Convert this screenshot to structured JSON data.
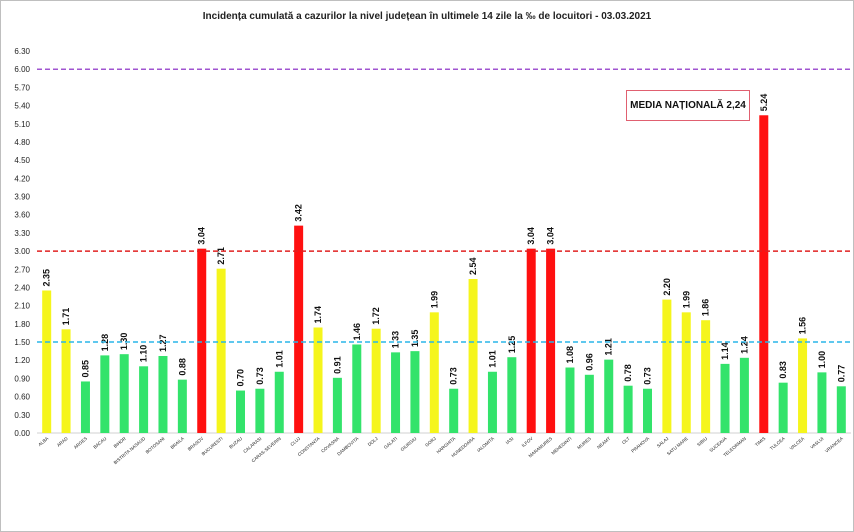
{
  "chart_data": {
    "type": "bar",
    "title": "Incidența cumulată a cazurilor la nivel județean în ultimele 14 zile la ‰ de locuitori - 03.03.2021",
    "xlabel": "",
    "ylabel": "",
    "ylim": [
      0,
      6.3
    ],
    "yticks": [
      "0.00",
      "0.30",
      "0.60",
      "0.90",
      "1.20",
      "1.50",
      "1.80",
      "2.10",
      "2.40",
      "2.70",
      "3.00",
      "3.30",
      "3.60",
      "3.90",
      "4.20",
      "4.50",
      "4.80",
      "5.10",
      "5.40",
      "5.70",
      "6.00",
      "6.30"
    ],
    "grid": false,
    "legend": "none",
    "categories": [
      "ALBA",
      "ARAD",
      "ARGES",
      "BACAU",
      "BIHOR",
      "BISTRITA NASAUD",
      "BOTOSANI",
      "BRAILA",
      "BRASOV",
      "BUCURESTI",
      "BUZAU",
      "CALARASI",
      "CARAS-SEVERIN",
      "CLUJ",
      "CONSTANTA",
      "COVASNA",
      "DAMBOVITA",
      "DOLJ",
      "GALATI",
      "GIURGIU",
      "GORJ",
      "HARGHITA",
      "HUNEDOARA",
      "IALOMITA",
      "IASI",
      "ILFOV",
      "MARAMURES",
      "MEHEDINTI",
      "MURES",
      "NEAMT",
      "OLT",
      "PRAHOVA",
      "SALAJ",
      "SATU MARE",
      "SIBIU",
      "SUCEAVA",
      "TELEORMAN",
      "TIMIS",
      "TULCEA",
      "VALCEA",
      "VASLUI",
      "VRANCEA"
    ],
    "values": [
      2.35,
      1.71,
      0.85,
      1.28,
      1.3,
      1.1,
      1.27,
      0.88,
      3.04,
      2.71,
      0.7,
      0.73,
      1.01,
      3.42,
      1.74,
      0.91,
      1.46,
      1.72,
      1.33,
      1.35,
      1.99,
      0.73,
      2.54,
      1.01,
      1.25,
      3.04,
      3.04,
      1.08,
      0.96,
      1.21,
      0.78,
      0.73,
      2.2,
      1.99,
      1.86,
      1.14,
      1.24,
      5.24,
      0.83,
      1.56,
      1.0,
      0.77
    ],
    "value_labels": [
      "2.35",
      "1.71",
      "0.85",
      "1.28",
      "1.30",
      "1.10",
      "1.27",
      "0.88",
      "3.04",
      "2.71",
      "0.70",
      "0.73",
      "1.01",
      "3.42",
      "1.74",
      "0.91",
      "1.46",
      "1.72",
      "1.33",
      "1.35",
      "1.99",
      "0.73",
      "2.54",
      "1.01",
      "1.25",
      "3.04",
      "3.04",
      "1.08",
      "0.96",
      "1.21",
      "0.78",
      "0.73",
      "2.20",
      "1.99",
      "1.86",
      "1.14",
      "1.24",
      "5.24",
      "0.83",
      "1.56",
      "1.00",
      "0.77"
    ],
    "bar_colors": {
      "low": "#33e36b",
      "mid": "#f5f51c",
      "high": "#ff1010"
    },
    "thresholds": [
      {
        "value": 1.5,
        "color": "#2ab6e8"
      },
      {
        "value": 3.0,
        "color": "#e02020"
      },
      {
        "value": 6.0,
        "color": "#a055d0"
      }
    ],
    "annotation": "MEDIA NAȚIONALĂ 2,24"
  }
}
